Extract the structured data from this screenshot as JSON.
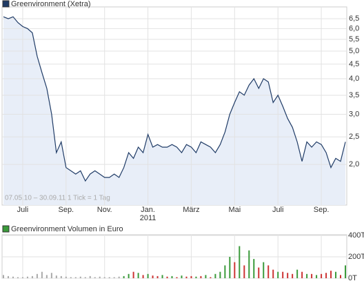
{
  "chart_data": [
    {
      "type": "line",
      "title": "Greenvironment (Xetra)",
      "legend_color": "#1f3b66",
      "annotation": "07.05.10 – 30.09.11   1 Tick = 1 Tag",
      "x_year_label": "2011",
      "categories": [
        null,
        null,
        null,
        null,
        "Juli",
        null,
        null,
        null,
        null,
        null,
        null,
        null,
        null,
        "Sep.",
        null,
        null,
        null,
        null,
        null,
        null,
        null,
        "Nov.",
        null,
        null,
        null,
        null,
        null,
        null,
        null,
        null,
        "Jan.",
        null,
        null,
        null,
        null,
        null,
        null,
        null,
        null,
        "März",
        null,
        null,
        null,
        null,
        null,
        null,
        null,
        null,
        "Mai",
        null,
        null,
        null,
        null,
        null,
        null,
        null,
        null,
        "Juli",
        null,
        null,
        null,
        null,
        null,
        null,
        null,
        null,
        "Sep.",
        null,
        null,
        null,
        null,
        null
      ],
      "series": [
        {
          "name": "Greenvironment (Xetra)",
          "color": "#1f3b66",
          "values": [
            6.6,
            6.5,
            6.6,
            6.3,
            6.1,
            6.0,
            5.8,
            4.8,
            4.2,
            3.7,
            3.0,
            2.2,
            2.4,
            1.95,
            1.9,
            1.85,
            1.9,
            1.75,
            1.85,
            1.9,
            1.85,
            1.8,
            1.8,
            1.85,
            1.8,
            1.95,
            2.2,
            2.1,
            2.3,
            2.2,
            2.55,
            2.3,
            2.35,
            2.3,
            2.3,
            2.35,
            2.3,
            2.2,
            2.35,
            2.3,
            2.2,
            2.4,
            2.35,
            2.3,
            2.2,
            2.35,
            2.6,
            3.0,
            3.3,
            3.6,
            3.5,
            3.8,
            4.0,
            3.7,
            4.0,
            3.9,
            3.3,
            3.5,
            3.2,
            2.9,
            2.7,
            2.4,
            2.05,
            2.4,
            2.3,
            2.4,
            2.35,
            2.2,
            1.95,
            2.1,
            2.05,
            2.4
          ]
        }
      ],
      "log_scale": true,
      "grid": true,
      "area_color": "#e8eef8",
      "ylim": [
        1.44,
        7.15
      ],
      "yticks": [
        {
          "value": 2.0,
          "label": "2,0"
        },
        {
          "value": 2.5,
          "label": "2,5"
        },
        {
          "value": 3.0,
          "label": "3,0"
        },
        {
          "value": 3.5,
          "label": "3,5"
        },
        {
          "value": 4.0,
          "label": "4,0"
        },
        {
          "value": 4.5,
          "label": "4,5"
        },
        {
          "value": 5.0,
          "label": "5,0"
        },
        {
          "value": 5.5,
          "label": "5,5"
        },
        {
          "value": 6.0,
          "label": "6,0"
        },
        {
          "value": 6.5,
          "label": "6,5"
        }
      ]
    },
    {
      "type": "bar",
      "title": "Greenvironment Volumen in Euro",
      "legend_color": "#3a9a3a",
      "values": [
        30,
        20,
        15,
        10,
        10,
        15,
        20,
        40,
        60,
        30,
        50,
        25,
        20,
        15,
        10,
        10,
        15,
        10,
        20,
        10,
        15,
        10,
        10,
        10,
        15,
        20,
        40,
        60,
        50,
        30,
        40,
        25,
        20,
        30,
        15,
        20,
        10,
        25,
        15,
        20,
        15,
        20,
        30,
        10,
        40,
        60,
        120,
        200,
        150,
        300,
        120,
        260,
        180,
        100,
        150,
        120,
        80,
        60,
        60,
        50,
        40,
        80,
        60,
        40,
        40,
        30,
        40,
        50,
        70,
        60,
        30,
        120
      ],
      "colors": [
        "#aaa",
        "#aaa",
        "#aaa",
        "#aaa",
        "#aaa",
        "#aaa",
        "#aaa",
        "#aaa",
        "#aaa",
        "#aaa",
        "#aaa",
        "#aaa",
        "#aaa",
        "#aaa",
        "#aaa",
        "#aaa",
        "#aaa",
        "#aaa",
        "#aaa",
        "#aaa",
        "#aaa",
        "#aaa",
        "#aaa",
        "#aaa",
        "#aaa",
        "#3a9a3a",
        "#3a9a3a",
        "#c33",
        "#3a9a3a",
        "#c33",
        "#3a9a3a",
        "#c33",
        "#c33",
        "#3a9a3a",
        "#c33",
        "#3a9a3a",
        "#c33",
        "#3a9a3a",
        "#c33",
        "#c33",
        "#3a9a3a",
        "#c33",
        "#3a9a3a",
        "#c33",
        "#3a9a3a",
        "#3a9a3a",
        "#3a9a3a",
        "#3a9a3a",
        "#c33",
        "#3a9a3a",
        "#c33",
        "#3a9a3a",
        "#3a9a3a",
        "#c33",
        "#3a9a3a",
        "#c33",
        "#c33",
        "#3a9a3a",
        "#c33",
        "#c33",
        "#c33",
        "#3a9a3a",
        "#c33",
        "#3a9a3a",
        "#c33",
        "#3a9a3a",
        "#c33",
        "#c33",
        "#c33",
        "#3a9a3a",
        "#c33",
        "#3a9a3a"
      ],
      "ylim": [
        0,
        400
      ],
      "grid": true,
      "yticks": [
        {
          "value": 0,
          "label": "0T"
        },
        {
          "value": 200,
          "label": "200T"
        },
        {
          "value": 400,
          "label": "400T"
        }
      ]
    }
  ]
}
